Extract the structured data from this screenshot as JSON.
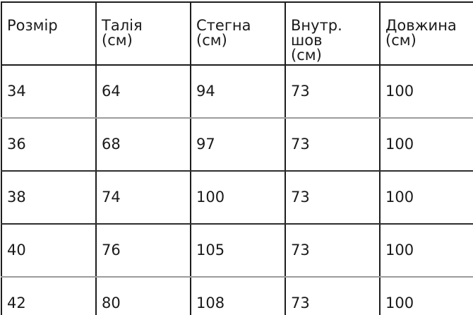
{
  "meta": {
    "background_color": "#ffffff",
    "text_color": "#1a1a1a",
    "border_color_dark": "#1d1d1d",
    "border_color_light": "#9c9c9c"
  },
  "chart_data": {
    "type": "table",
    "title": "",
    "columns": [
      "Розмір",
      "Талія (см)",
      "Стегна (см)",
      "Внутр. шов (см)",
      "Довжина (см)"
    ],
    "columns_display": [
      "Розмір",
      "Талія\n(см)",
      "Стегна\n(см)",
      "Внутр. шов\n(см)",
      "Довжина\n(см)"
    ],
    "rows": [
      [
        "34",
        "64",
        "94",
        "73",
        "100"
      ],
      [
        "36",
        "68",
        "97",
        "73",
        "100"
      ],
      [
        "38",
        "74",
        "100",
        "73",
        "100"
      ],
      [
        "40",
        "76",
        "105",
        "73",
        "100"
      ],
      [
        "42",
        "80",
        "108",
        "73",
        "100"
      ]
    ],
    "layout": {
      "grid": true,
      "header_row": true,
      "right_border_visible": false
    }
  }
}
